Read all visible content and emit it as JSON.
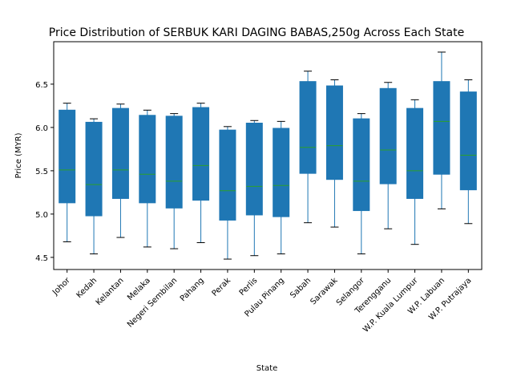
{
  "chart_data": {
    "type": "box",
    "title": "Price Distribution of SERBUK KARI DAGING BABAS,250g Across Each State",
    "xlabel": "State",
    "ylabel": "Price (MYR)",
    "ylim": [
      4.36,
      6.99
    ],
    "yticks": [
      "4.5",
      "5.0",
      "5.5",
      "6.0",
      "6.5"
    ],
    "grid": false,
    "box_color": "#1f77b4",
    "median_color": "#2ca02c",
    "categories": [
      "Johor",
      "Kedah",
      "Kelantan",
      "Melaka",
      "Negeri Sembilan",
      "Pahang",
      "Perak",
      "Perlis",
      "Pulau Pinang",
      "Sabah",
      "Sarawak",
      "Selangor",
      "Terengganu",
      "W.P. Kuala Lumpur",
      "W.P. Labuan",
      "W.P. Putrajaya"
    ],
    "boxes": [
      {
        "whisker_low": 4.68,
        "q1": 5.13,
        "median": 5.51,
        "q3": 6.2,
        "whisker_high": 6.28
      },
      {
        "whisker_low": 4.54,
        "q1": 4.98,
        "median": 5.34,
        "q3": 6.06,
        "whisker_high": 6.1
      },
      {
        "whisker_low": 4.73,
        "q1": 5.18,
        "median": 5.51,
        "q3": 6.22,
        "whisker_high": 6.27
      },
      {
        "whisker_low": 4.62,
        "q1": 5.13,
        "median": 5.46,
        "q3": 6.14,
        "whisker_high": 6.2
      },
      {
        "whisker_low": 4.6,
        "q1": 5.07,
        "median": 5.38,
        "q3": 6.13,
        "whisker_high": 6.16
      },
      {
        "whisker_low": 4.67,
        "q1": 5.16,
        "median": 5.56,
        "q3": 6.23,
        "whisker_high": 6.28
      },
      {
        "whisker_low": 4.48,
        "q1": 4.93,
        "median": 5.27,
        "q3": 5.97,
        "whisker_high": 6.01
      },
      {
        "whisker_low": 4.52,
        "q1": 4.99,
        "median": 5.32,
        "q3": 6.05,
        "whisker_high": 6.08
      },
      {
        "whisker_low": 4.54,
        "q1": 4.97,
        "median": 5.33,
        "q3": 5.99,
        "whisker_high": 6.07
      },
      {
        "whisker_low": 4.9,
        "q1": 5.47,
        "median": 5.77,
        "q3": 6.53,
        "whisker_high": 6.65
      },
      {
        "whisker_low": 4.85,
        "q1": 5.4,
        "median": 5.79,
        "q3": 6.48,
        "whisker_high": 6.55
      },
      {
        "whisker_low": 4.54,
        "q1": 5.04,
        "median": 5.38,
        "q3": 6.1,
        "whisker_high": 6.16
      },
      {
        "whisker_low": 4.83,
        "q1": 5.35,
        "median": 5.74,
        "q3": 6.45,
        "whisker_high": 6.52
      },
      {
        "whisker_low": 4.65,
        "q1": 5.18,
        "median": 5.5,
        "q3": 6.22,
        "whisker_high": 6.32
      },
      {
        "whisker_low": 5.06,
        "q1": 5.46,
        "median": 6.07,
        "q3": 6.53,
        "whisker_high": 6.87
      },
      {
        "whisker_low": 4.89,
        "q1": 5.28,
        "median": 5.68,
        "q3": 6.41,
        "whisker_high": 6.55
      }
    ]
  }
}
